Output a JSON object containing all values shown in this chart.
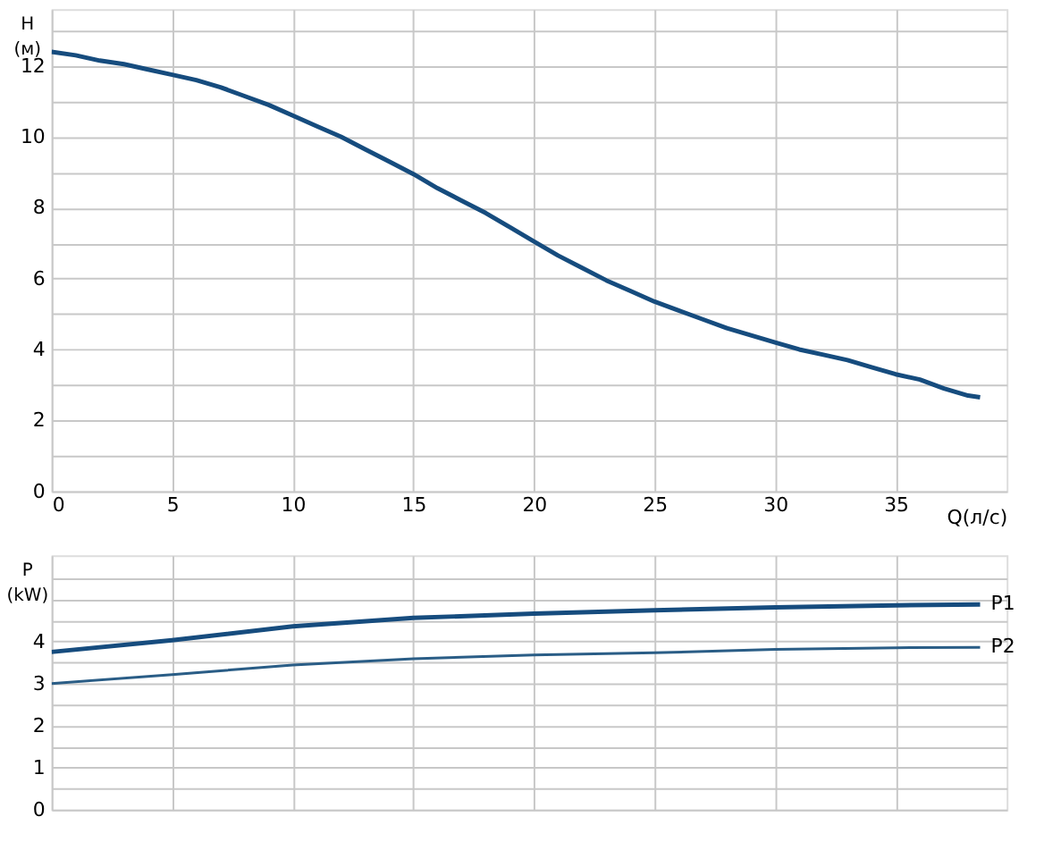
{
  "chart_data": [
    {
      "type": "line",
      "xlabel": "Q(л/с)",
      "ylabel": "H\n(м)",
      "xlim": [
        0,
        39.6
      ],
      "ylim": [
        0,
        13.6
      ],
      "xticks": [
        0,
        5,
        10,
        15,
        20,
        25,
        30,
        35
      ],
      "yticks": [
        0,
        {
          "value": 1,
          "label": null
        },
        2,
        {
          "value": 3,
          "label": null
        },
        4,
        {
          "value": 5,
          "label": null
        },
        6,
        {
          "value": 7,
          "label": null
        },
        8,
        {
          "value": 9,
          "label": null
        },
        10,
        {
          "value": 11,
          "label": null
        },
        12,
        {
          "value": 13,
          "label": null
        }
      ],
      "grid": true,
      "x": [
        0,
        1,
        2,
        3,
        4,
        5,
        6,
        7,
        8,
        9,
        10,
        11,
        12,
        13,
        14,
        15,
        16,
        17,
        18,
        19,
        20,
        21,
        22,
        23,
        24,
        25,
        26,
        27,
        28,
        29,
        30,
        31,
        32,
        33,
        34,
        35,
        36,
        37,
        38,
        38.5
      ],
      "series": [
        {
          "color": "#164c7e",
          "values": [
            12.4,
            12.3,
            12.15,
            12.05,
            11.9,
            11.75,
            11.6,
            11.4,
            11.15,
            10.9,
            10.6,
            10.3,
            10.0,
            9.65,
            9.3,
            8.95,
            8.55,
            8.2,
            7.85,
            7.45,
            7.05,
            6.65,
            6.3,
            5.95,
            5.65,
            5.35,
            5.1,
            4.85,
            4.6,
            4.4,
            4.2,
            4.0,
            3.85,
            3.7,
            3.5,
            3.3,
            3.15,
            2.9,
            2.7,
            2.65
          ]
        }
      ]
    },
    {
      "type": "line",
      "ylabel": "P\n(kW)",
      "xlim": [
        0,
        39.6
      ],
      "ylim": [
        0,
        6.05
      ],
      "tick_labels": "y",
      "xticks": [
        0,
        5,
        10,
        15,
        20,
        25,
        30,
        35
      ],
      "yticks": [
        0,
        {
          "value": 0.5,
          "label": null
        },
        1,
        {
          "value": 1.5,
          "label": null
        },
        2,
        {
          "value": 2.5,
          "label": null
        },
        3,
        {
          "value": 3.5,
          "label": null
        },
        4,
        {
          "value": 4.5,
          "label": null
        },
        {
          "value": 5,
          "label": null
        },
        {
          "value": 5.5,
          "label": null
        }
      ],
      "grid": true,
      "x": [
        0,
        5,
        10,
        15,
        20,
        25,
        30,
        35,
        38.5
      ],
      "series": [
        {
          "name": "P1",
          "color": "#164c7e",
          "values": [
            3.75,
            4.03,
            4.36,
            4.56,
            4.66,
            4.74,
            4.81,
            4.86,
            4.88
          ]
        },
        {
          "name": "P2",
          "color": "#2a5d86",
          "values": [
            3.0,
            3.21,
            3.44,
            3.59,
            3.68,
            3.73,
            3.81,
            3.85,
            3.86
          ]
        }
      ]
    }
  ]
}
